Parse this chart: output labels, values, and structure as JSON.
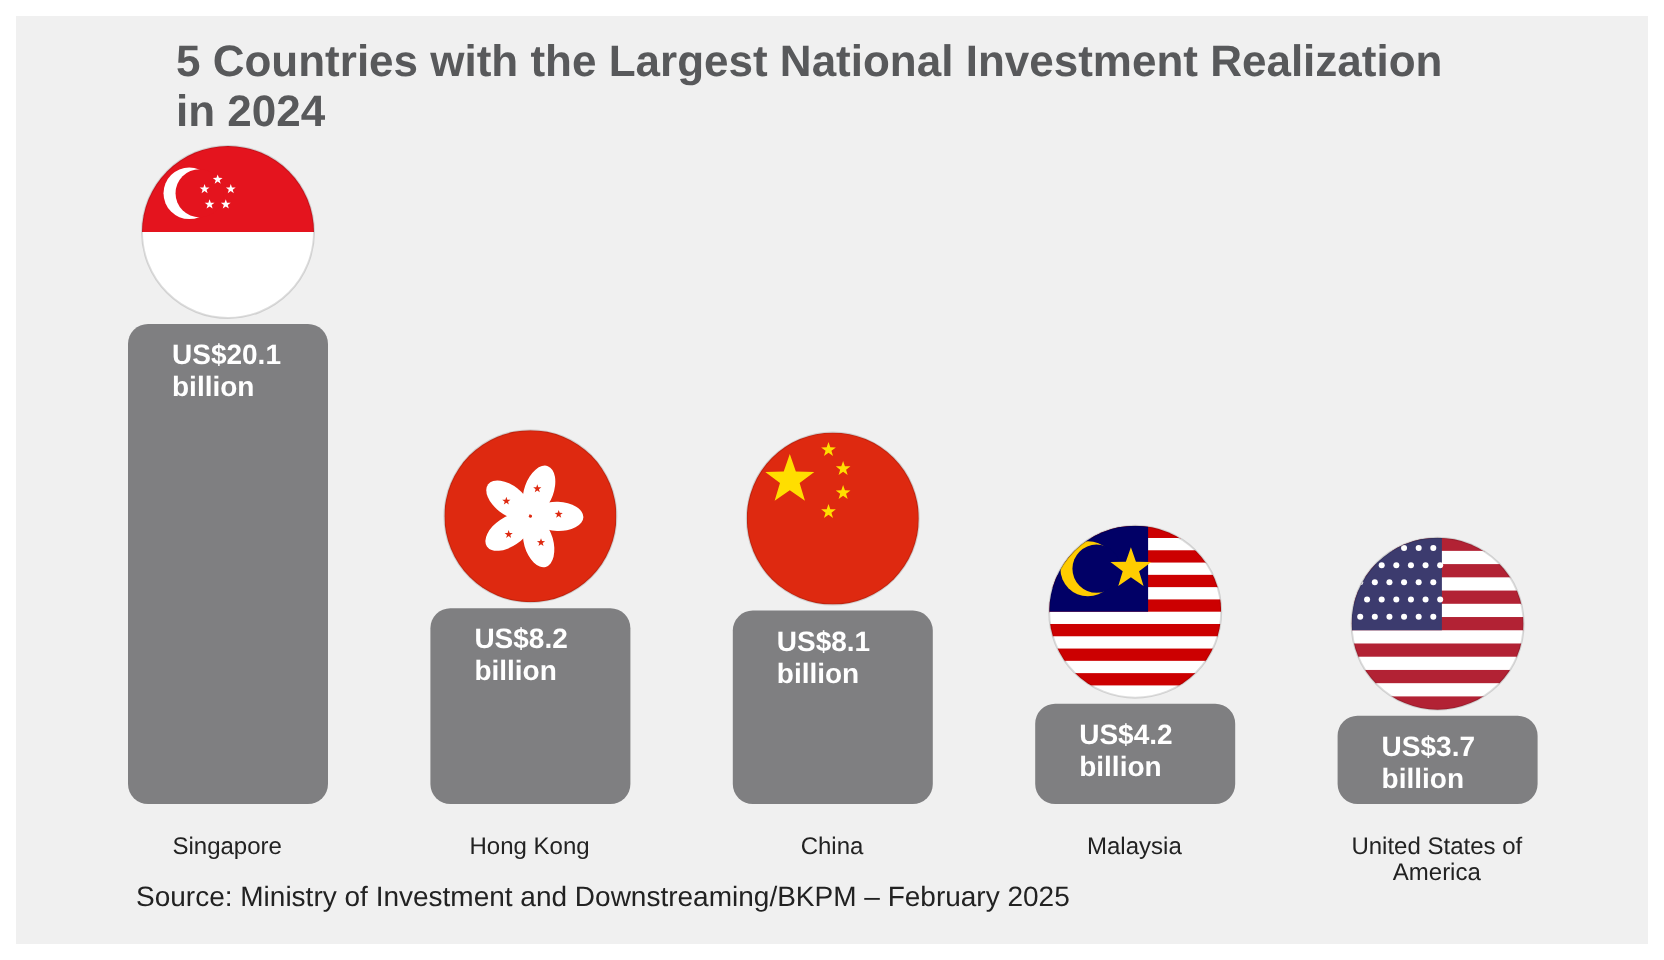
{
  "chart_data": {
    "type": "bar",
    "title": "5 Countries with the Largest National Investment Realization in 2024",
    "categories": [
      "Singapore",
      "Hong Kong",
      "China",
      "Malaysia",
      "United States of America"
    ],
    "values": [
      20100000000,
      8200000000,
      8100000000,
      4200000000,
      3700000000
    ],
    "color": "#7f7f81",
    "data_labels": true,
    "value_labels": [
      "US$20.1 billion",
      "US$8.2 billion",
      "US$8.1 billion",
      "US$4.2 billion",
      "US$3.7 billion"
    ],
    "annotations": [
      "Source: Ministry of Investment and Downstreaming/BKPM – February 2025"
    ]
  }
}
